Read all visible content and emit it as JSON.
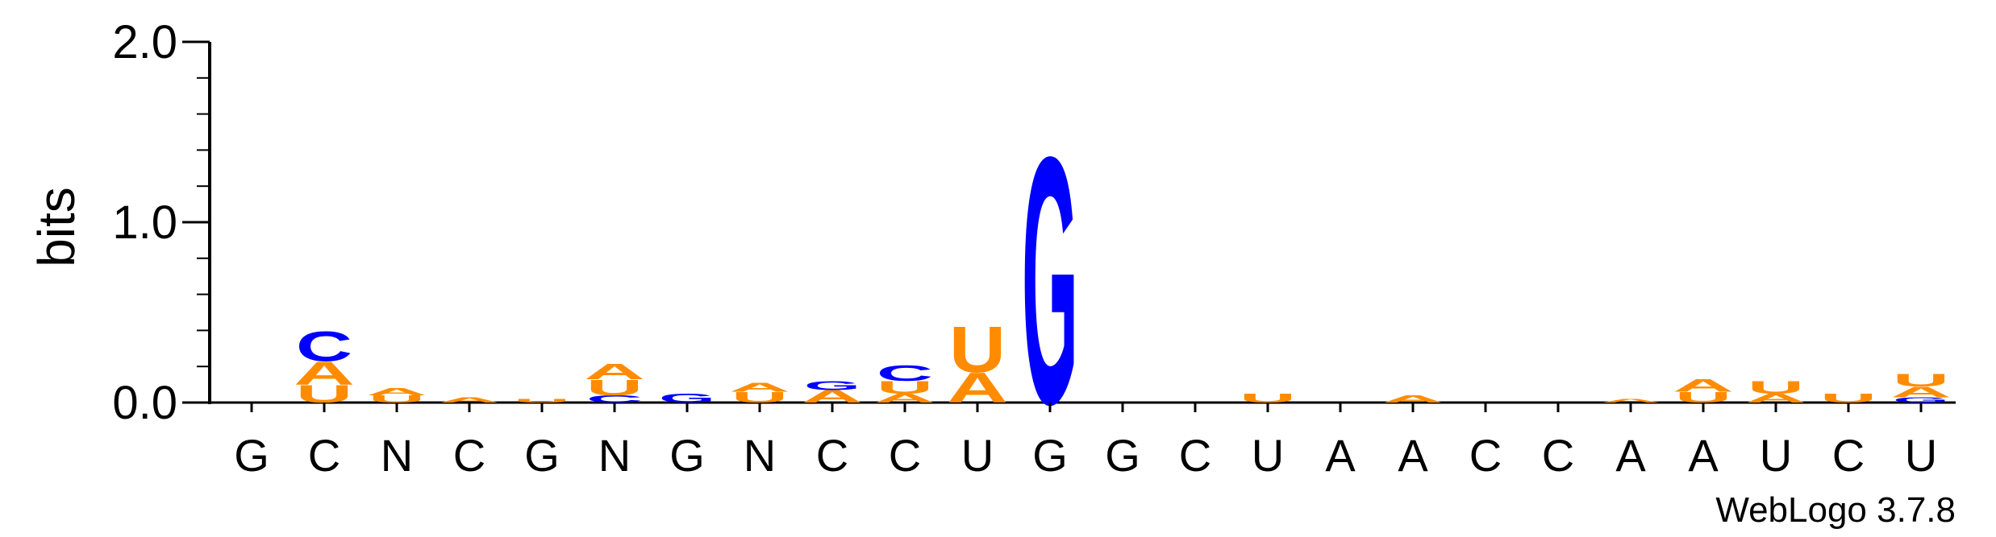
{
  "chart_data": {
    "type": "sequence-logo",
    "ylabel": "bits",
    "ylim": [
      0,
      2.0
    ],
    "yticks": [
      "0.0",
      "1.0",
      "2.0"
    ],
    "colors": {
      "A": "#ff8c00",
      "U": "#ff8c00",
      "G": "#0000ff",
      "C": "#0000ff"
    },
    "positions": [
      {
        "label": "G",
        "stack": []
      },
      {
        "label": "C",
        "stack": [
          {
            "letter": "U",
            "height": 0.1
          },
          {
            "letter": "A",
            "height": 0.13
          },
          {
            "letter": "C",
            "height": 0.17
          }
        ]
      },
      {
        "label": "N",
        "stack": [
          {
            "letter": "U",
            "height": 0.04
          },
          {
            "letter": "A",
            "height": 0.04
          }
        ]
      },
      {
        "label": "C",
        "stack": [
          {
            "letter": "A",
            "height": 0.03
          }
        ]
      },
      {
        "label": "G",
        "stack": [
          {
            "letter": "U",
            "height": 0.02
          }
        ]
      },
      {
        "label": "N",
        "stack": [
          {
            "letter": "C",
            "height": 0.04
          },
          {
            "letter": "U",
            "height": 0.09
          },
          {
            "letter": "A",
            "height": 0.09
          }
        ]
      },
      {
        "label": "G",
        "stack": [
          {
            "letter": "G",
            "height": 0.05
          }
        ]
      },
      {
        "label": "N",
        "stack": [
          {
            "letter": "U",
            "height": 0.06
          },
          {
            "letter": "A",
            "height": 0.05
          }
        ]
      },
      {
        "label": "C",
        "stack": [
          {
            "letter": "A",
            "height": 0.07
          },
          {
            "letter": "G",
            "height": 0.05
          }
        ]
      },
      {
        "label": "C",
        "stack": [
          {
            "letter": "A",
            "height": 0.05
          },
          {
            "letter": "U",
            "height": 0.07
          },
          {
            "letter": "C",
            "height": 0.09
          }
        ]
      },
      {
        "label": "U",
        "stack": [
          {
            "letter": "A",
            "height": 0.17
          },
          {
            "letter": "U",
            "height": 0.26
          }
        ]
      },
      {
        "label": "G",
        "stack": [
          {
            "letter": "G",
            "height": 1.4
          }
        ]
      },
      {
        "label": "G",
        "stack": []
      },
      {
        "label": "C",
        "stack": []
      },
      {
        "label": "U",
        "stack": [
          {
            "letter": "U",
            "height": 0.05
          }
        ]
      },
      {
        "label": "A",
        "stack": []
      },
      {
        "label": "A",
        "stack": [
          {
            "letter": "A",
            "height": 0.04
          }
        ]
      },
      {
        "label": "C",
        "stack": []
      },
      {
        "label": "C",
        "stack": []
      },
      {
        "label": "A",
        "stack": [
          {
            "letter": "A",
            "height": 0.02
          }
        ]
      },
      {
        "label": "A",
        "stack": [
          {
            "letter": "U",
            "height": 0.06
          },
          {
            "letter": "A",
            "height": 0.07
          }
        ]
      },
      {
        "label": "U",
        "stack": [
          {
            "letter": "A",
            "height": 0.05
          },
          {
            "letter": "U",
            "height": 0.07
          }
        ]
      },
      {
        "label": "C",
        "stack": [
          {
            "letter": "U",
            "height": 0.05
          }
        ]
      },
      {
        "label": "U",
        "stack": [
          {
            "letter": "G",
            "height": 0.03
          },
          {
            "letter": "A",
            "height": 0.06
          },
          {
            "letter": "U",
            "height": 0.07
          }
        ]
      }
    ]
  },
  "footer": {
    "text": "WebLogo 3.7.8"
  }
}
